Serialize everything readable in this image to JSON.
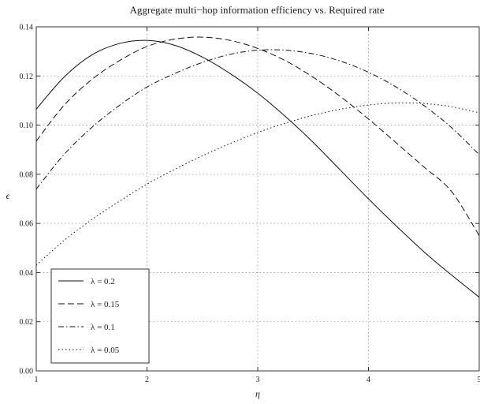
{
  "chart_data": {
    "type": "line",
    "title": "Aggregate  multi−hop information efficiency vs. Required rate",
    "xlabel": "η",
    "ylabel": "ϵ",
    "xlim": [
      1,
      5
    ],
    "ylim": [
      0,
      0.14
    ],
    "x_ticks": [
      "1",
      "2",
      "3",
      "4",
      "5"
    ],
    "y_ticks": [
      "0.00",
      "0.02",
      "0.04",
      "0.06",
      "0.08",
      "0.10",
      "0.12",
      "0.14"
    ],
    "grid": true,
    "legend_position": "bottom-left",
    "series": [
      {
        "name": "λ = 0.2",
        "dash": "solid",
        "x": [
          1,
          1.25,
          1.5,
          1.75,
          2,
          2.25,
          2.5,
          2.75,
          3,
          3.25,
          3.5,
          3.75,
          4,
          4.25,
          4.5,
          4.75,
          5
        ],
        "y": [
          0.1065,
          0.1195,
          0.1285,
          0.1332,
          0.1345,
          0.1325,
          0.1277,
          0.121,
          0.113,
          0.1035,
          0.093,
          0.0815,
          0.07,
          0.059,
          0.0485,
          0.039,
          0.03
        ]
      },
      {
        "name": "λ = 0.15",
        "dash": "long-dash",
        "x": [
          1,
          1.25,
          1.5,
          1.75,
          2,
          2.25,
          2.5,
          2.75,
          3,
          3.25,
          3.5,
          3.75,
          4,
          4.25,
          4.5,
          4.75,
          5
        ],
        "y": [
          0.0935,
          0.108,
          0.1185,
          0.1262,
          0.132,
          0.135,
          0.1358,
          0.1345,
          0.1312,
          0.1262,
          0.1195,
          0.1115,
          0.1025,
          0.0928,
          0.083,
          0.073,
          0.055
        ]
      },
      {
        "name": "λ = 0.1",
        "dash": "dash-dot",
        "x": [
          1,
          1.25,
          1.5,
          1.75,
          2,
          2.25,
          2.5,
          2.75,
          3,
          3.25,
          3.5,
          3.75,
          4,
          4.25,
          4.5,
          4.75,
          5
        ],
        "y": [
          0.074,
          0.088,
          0.099,
          0.108,
          0.1155,
          0.121,
          0.1255,
          0.1288,
          0.1305,
          0.1305,
          0.129,
          0.126,
          0.1215,
          0.1155,
          0.108,
          0.099,
          0.088
        ]
      },
      {
        "name": "λ = 0.05",
        "dash": "dotted",
        "x": [
          1,
          1.25,
          1.5,
          1.75,
          2,
          2.25,
          2.5,
          2.75,
          3,
          3.25,
          3.5,
          3.75,
          4,
          4.25,
          4.5,
          4.75,
          5
        ],
        "y": [
          0.043,
          0.053,
          0.0615,
          0.069,
          0.076,
          0.082,
          0.0875,
          0.0925,
          0.097,
          0.1008,
          0.104,
          0.1065,
          0.1082,
          0.109,
          0.1088,
          0.1075,
          0.105
        ]
      }
    ]
  }
}
